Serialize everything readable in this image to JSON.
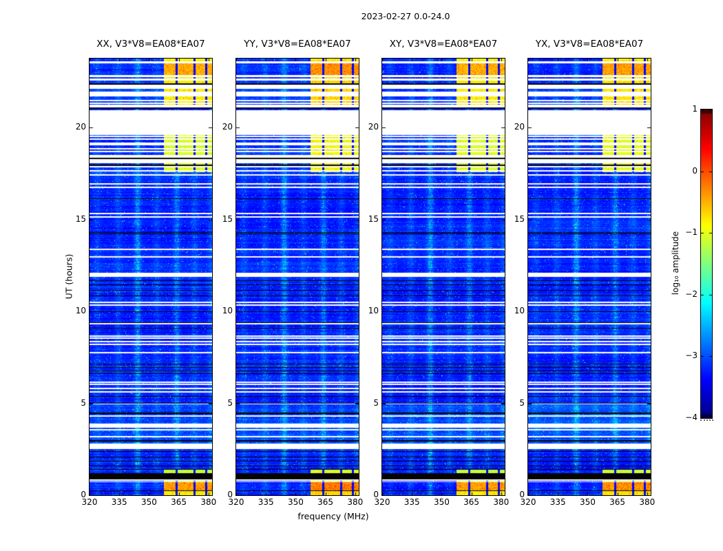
{
  "figure": {
    "background": "#ffffff",
    "frame_color": "#000000"
  },
  "chart_data": {
    "type": "heatmap",
    "title": "2023-02-27 0.0-24.0",
    "xlabel": "frequency (MHz)",
    "ylabel": "UT (hours)",
    "xlim": [
      320,
      381.8
    ],
    "ylim": [
      0,
      23.75
    ],
    "xticks": [
      320,
      335,
      350,
      365,
      380
    ],
    "yticks": [
      0,
      5,
      10,
      15,
      20
    ],
    "colormap": "jet",
    "grid": false,
    "panels": [
      {
        "label": "XX, V3*V8=EA08*EA07",
        "pol": "XX",
        "seed": 1,
        "block_boost": 0.0
      },
      {
        "label": "YY, V3*V8=EA08*EA07",
        "pol": "YY",
        "seed": 2,
        "block_boost": 0.03
      },
      {
        "label": "XY, V3*V8=EA08*EA07",
        "pol": "XY",
        "seed": 3,
        "block_boost": 0.0
      },
      {
        "label": "YX, V3*V8=EA08*EA07",
        "pol": "YX",
        "seed": 4,
        "block_boost": 0.012
      }
    ],
    "colorbar": {
      "label": "log₁₀ amplitude",
      "vmin": -4,
      "vmax": 1,
      "ticks": [
        1,
        0,
        -1,
        -2,
        -3,
        -4
      ]
    },
    "vertical_streaks": [
      {
        "f": 324.0,
        "s": 0.45,
        "core": false
      },
      {
        "f": 334.5,
        "s": 0.55,
        "core": false
      },
      {
        "f": 344.3,
        "s": 1.0,
        "core": true
      },
      {
        "f": 354.0,
        "s": 0.5,
        "core": false
      },
      {
        "f": 364.0,
        "s": 0.8,
        "core": true
      },
      {
        "f": 373.0,
        "s": 0.55,
        "core": false
      },
      {
        "f": 381.5,
        "s": 0.65,
        "core": false
      }
    ],
    "rfi_blocks": {
      "f0": 357.5,
      "f1": 382,
      "separators": [
        363.9,
        372.9,
        378.8
      ],
      "levels": {
        "muted": 0.62,
        "strong": 0.7,
        "medium": 0.635,
        "green": 0.585,
        "greenlow": 0.56,
        "strong_orange": 0.715
      }
    },
    "time_bands": [
      {
        "t0": 23.58,
        "t1": 23.8,
        "type": "noise",
        "blocks": "muted"
      },
      {
        "t0": 23.5,
        "t1": 23.58,
        "type": "white"
      },
      {
        "t0": 22.86,
        "t1": 23.5,
        "type": "noise",
        "blocks": "strong"
      },
      {
        "t0": 22.73,
        "t1": 22.86,
        "type": "white"
      },
      {
        "t0": 22.66,
        "t1": 22.73,
        "type": "noise",
        "dim": true,
        "blocks": "muted"
      },
      {
        "t0": 22.54,
        "t1": 22.66,
        "type": "white"
      },
      {
        "t0": 21.94,
        "t1": 22.54,
        "type": "stripes",
        "blocks": "medium"
      },
      {
        "t0": 21.69,
        "t1": 21.94,
        "type": "white"
      },
      {
        "t0": 21.23,
        "t1": 21.69,
        "type": "stripes",
        "blocks": "medium"
      },
      {
        "t0": 21.09,
        "t1": 21.23,
        "type": "white"
      },
      {
        "t0": 21.02,
        "t1": 21.09,
        "type": "black"
      },
      {
        "t0": 20.95,
        "t1": 21.02,
        "type": "noise"
      },
      {
        "t0": 19.6,
        "t1": 20.95,
        "type": "white"
      },
      {
        "t0": 17.19,
        "t1": 19.6,
        "type": "stripes2",
        "blocks": "green",
        "blocks_t0": 17.55
      },
      {
        "t0": 5.03,
        "t1": 17.19,
        "type": "noise"
      },
      {
        "t0": 4.99,
        "t1": 5.03,
        "type": "black"
      },
      {
        "t0": 2.81,
        "t1": 4.99,
        "type": "stripes",
        "bright": true
      },
      {
        "t0": 2.51,
        "t1": 2.81,
        "type": "white"
      },
      {
        "t0": 1.18,
        "t1": 2.51,
        "type": "noise",
        "blocks": "greenlow",
        "blocks_t1": 1.4
      },
      {
        "t0": 0.85,
        "t1": 1.18,
        "type": "black"
      },
      {
        "t0": 0.8,
        "t1": 0.85,
        "type": "white"
      },
      {
        "t0": 0.76,
        "t1": 0.8,
        "type": "noise",
        "blocks": "greenlow"
      },
      {
        "t0": 0.71,
        "t1": 0.76,
        "type": "white"
      },
      {
        "t0": 0.28,
        "t1": 0.71,
        "type": "noise",
        "blocks": "strong_orange"
      },
      {
        "t0": 0.24,
        "t1": 0.28,
        "type": "black"
      },
      {
        "t0": 0.0,
        "t1": 0.24,
        "type": "noise",
        "blocks": "medium"
      }
    ],
    "white_lines_t": [
      16.92,
      16.74,
      15.32,
      15.13,
      13.36,
      12.97,
      12.05,
      11.98,
      11.91,
      10.47,
      10.34,
      9.33,
      8.66,
      8.54,
      8.37,
      8.21,
      7.76,
      6.16,
      6.04,
      5.79,
      5.61
    ],
    "black_lines_t": [
      16.12,
      14.27,
      14.19,
      11.66,
      11.41,
      11.13,
      10.81,
      9.96,
      9.36,
      9.06,
      7.12,
      6.92,
      6.73,
      6.61,
      5.36,
      2.36,
      2.06,
      1.83,
      1.56,
      1.39
    ]
  }
}
